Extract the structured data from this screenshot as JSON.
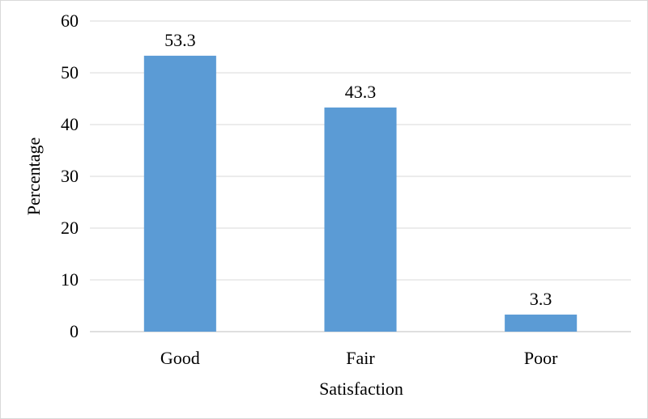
{
  "chart_data": {
    "type": "bar",
    "categories": [
      "Good",
      "Fair",
      "Poor"
    ],
    "values": [
      53.3,
      43.3,
      3.3
    ],
    "data_labels": [
      "53.3",
      "43.3",
      "3.3"
    ],
    "title": "",
    "xlabel": "Satisfaction",
    "ylabel": "Percentage",
    "ylim": [
      0,
      60
    ],
    "yticks": [
      0,
      10,
      20,
      30,
      40,
      50,
      60
    ],
    "grid": true,
    "bar_color": "#5b9bd5"
  }
}
